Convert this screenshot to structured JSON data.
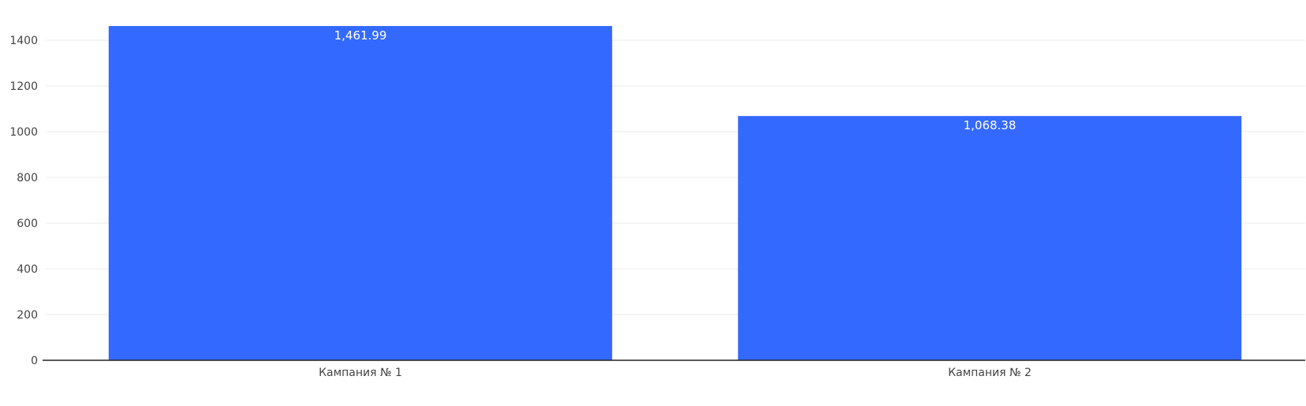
{
  "chart_data": {
    "type": "bar",
    "categories": [
      "Кампания № 1",
      "Кампания № 2"
    ],
    "values": [
      1461.99,
      1068.38
    ],
    "data_labels": [
      "1,461.99",
      "1,068.38"
    ],
    "title": "",
    "xlabel": "",
    "ylabel": "",
    "ylim": [
      0,
      1500
    ],
    "yticks": [
      0,
      200,
      400,
      600,
      800,
      1000,
      1200,
      1400
    ],
    "grid": true,
    "legend": "none",
    "bar_color": "#3469ff"
  }
}
